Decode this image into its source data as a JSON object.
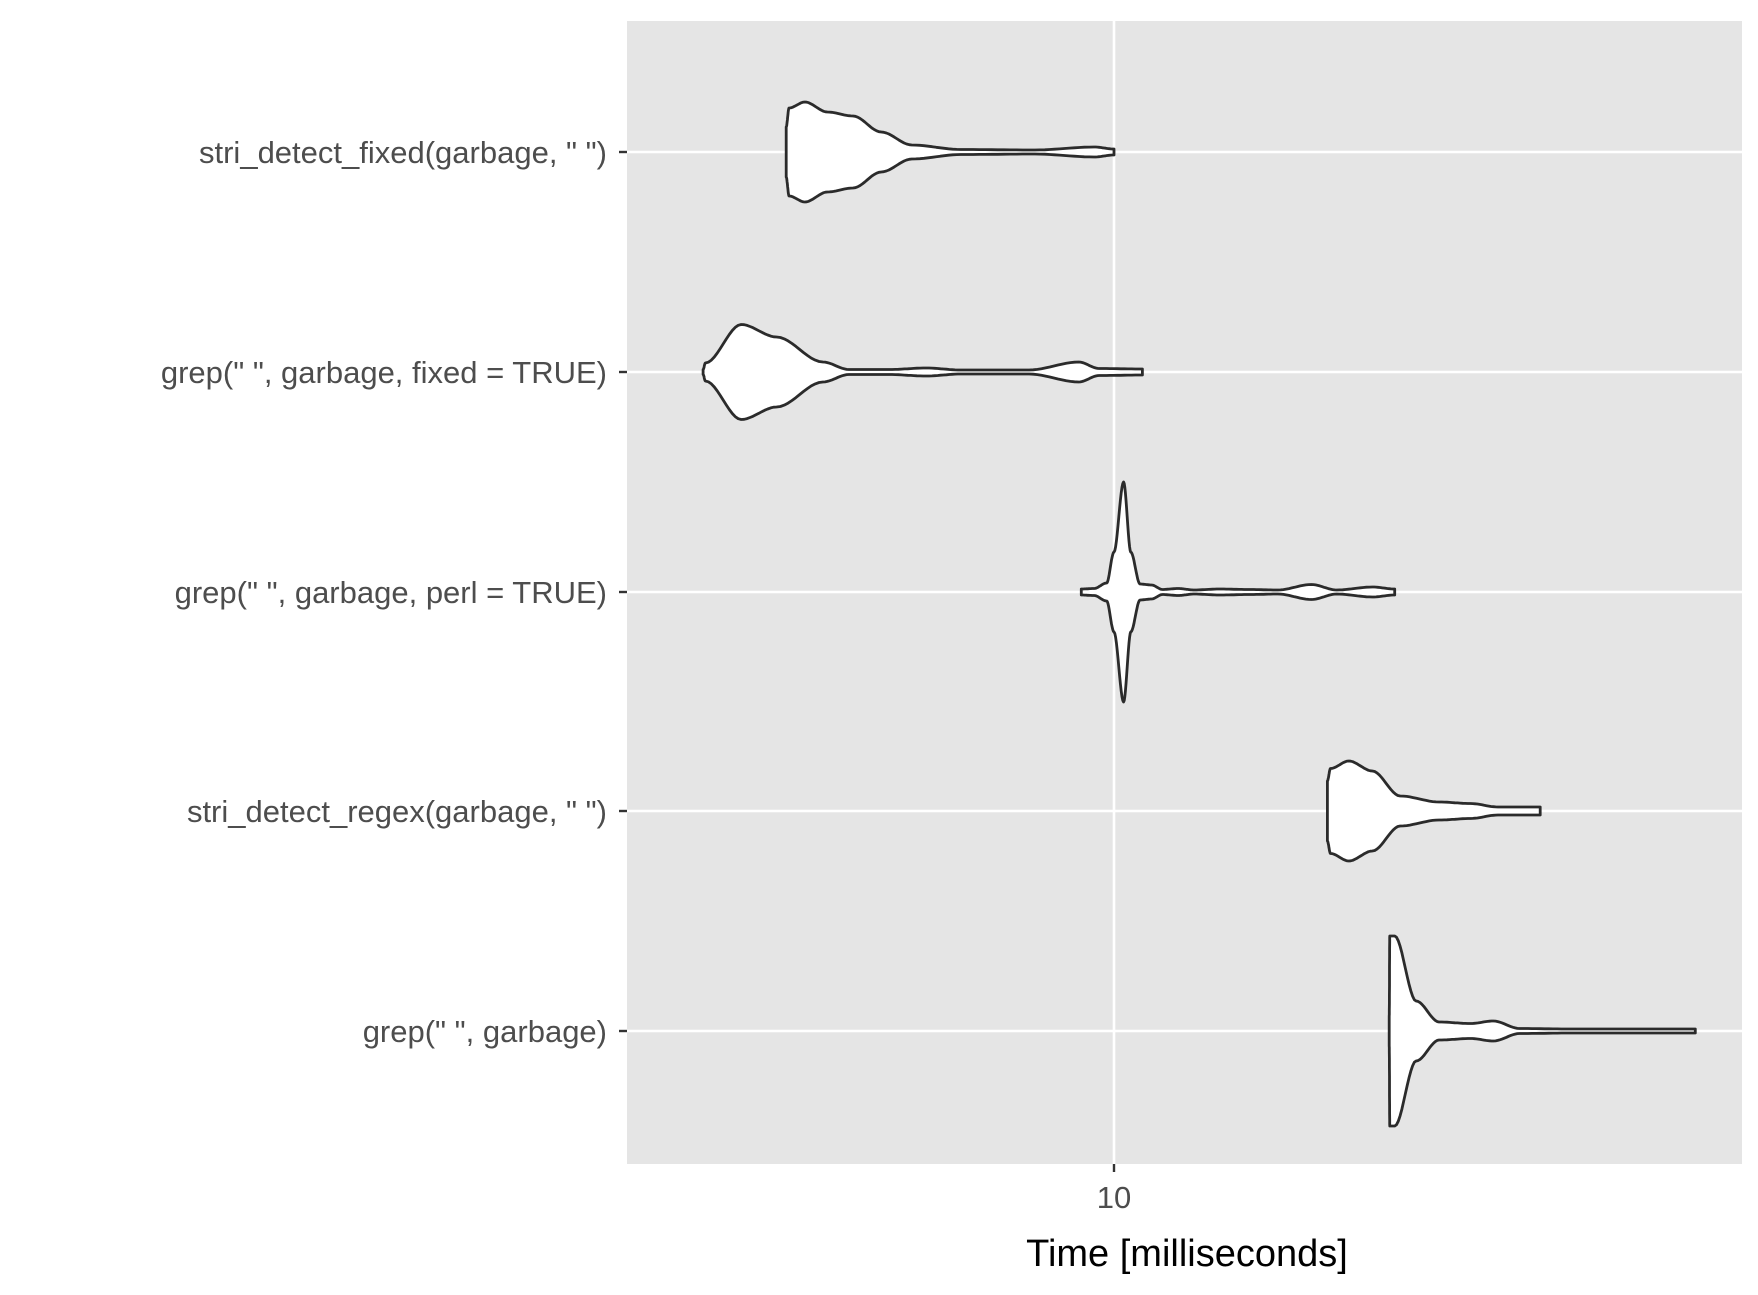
{
  "chart_data": {
    "type": "violin",
    "xlabel": "Time [milliseconds]",
    "ylabel": "",
    "x_scale": "log10",
    "x_ticks": [
      10
    ],
    "xlim": [
      3.7,
      33
    ],
    "panel_background": "#e5e5e5",
    "grid_color": "#ffffff",
    "violin_fill": "#ffffff",
    "violin_stroke": "#2b2b2b",
    "categories": [
      "stri_detect_fixed(garbage, \" \")",
      "grep(\" \", garbage, fixed = TRUE)",
      "grep(\" \", garbage, perl = TRUE)",
      "stri_detect_regex(garbage, \" \")",
      "grep(\" \", garbage)"
    ],
    "series": [
      {
        "category": "stri_detect_fixed(garbage, \" \")",
        "min": 5.1,
        "max": 10.0,
        "mode": 5.3,
        "profile": [
          [
            5.1,
            0.5
          ],
          [
            5.13,
            0.88
          ],
          [
            5.3,
            1.0
          ],
          [
            5.55,
            0.8
          ],
          [
            5.85,
            0.72
          ],
          [
            6.2,
            0.4
          ],
          [
            6.6,
            0.14
          ],
          [
            7.3,
            0.05
          ],
          [
            8.5,
            0.04
          ],
          [
            9.6,
            0.1
          ],
          [
            10.0,
            0.06
          ]
        ]
      },
      {
        "category": "grep(\" \", garbage, fixed = TRUE)",
        "min": 4.3,
        "max": 10.6,
        "mode": 4.65,
        "profile": [
          [
            4.3,
            0.05
          ],
          [
            4.32,
            0.18
          ],
          [
            4.65,
            0.95
          ],
          [
            5.0,
            0.7
          ],
          [
            5.5,
            0.2
          ],
          [
            5.8,
            0.05
          ],
          [
            6.3,
            0.05
          ],
          [
            6.8,
            0.08
          ],
          [
            7.3,
            0.04
          ],
          [
            8.4,
            0.04
          ],
          [
            9.3,
            0.2
          ],
          [
            9.7,
            0.07
          ],
          [
            10.6,
            0.06
          ]
        ]
      },
      {
        "category": "grep(\" \", garbage, perl = TRUE)",
        "min": 9.35,
        "max": 17.8,
        "mode": 10.2,
        "profile": [
          [
            9.35,
            0.06
          ],
          [
            9.6,
            0.07
          ],
          [
            9.85,
            0.18
          ],
          [
            10.0,
            0.8
          ],
          [
            10.2,
            2.2
          ],
          [
            10.35,
            0.8
          ],
          [
            10.55,
            0.16
          ],
          [
            10.8,
            0.14
          ],
          [
            11.05,
            0.05
          ],
          [
            11.4,
            0.07
          ],
          [
            11.8,
            0.04
          ],
          [
            12.4,
            0.06
          ],
          [
            13.2,
            0.05
          ],
          [
            14.0,
            0.04
          ],
          [
            15.0,
            0.15
          ],
          [
            15.8,
            0.04
          ],
          [
            17.0,
            0.1
          ],
          [
            17.8,
            0.06
          ]
        ]
      },
      {
        "category": "stri_detect_regex(garbage, \" \")",
        "min": 15.5,
        "max": 24.0,
        "mode": 16.2,
        "profile": [
          [
            15.5,
            0.6
          ],
          [
            15.6,
            0.85
          ],
          [
            16.2,
            1.0
          ],
          [
            17.0,
            0.8
          ],
          [
            18.0,
            0.3
          ],
          [
            19.5,
            0.18
          ],
          [
            20.8,
            0.15
          ],
          [
            22.0,
            0.08
          ],
          [
            24.0,
            0.08
          ]
        ]
      },
      {
        "category": "grep(\" \", garbage)",
        "min": 17.6,
        "max": 33.0,
        "mode": 17.8,
        "profile": [
          [
            17.6,
            0.3
          ],
          [
            17.62,
            1.9
          ],
          [
            17.8,
            1.9
          ],
          [
            18.6,
            0.6
          ],
          [
            19.5,
            0.18
          ],
          [
            20.8,
            0.15
          ],
          [
            21.8,
            0.2
          ],
          [
            23.0,
            0.05
          ],
          [
            25.5,
            0.04
          ],
          [
            28.0,
            0.04
          ],
          [
            33.0,
            0.04
          ]
        ]
      }
    ]
  }
}
